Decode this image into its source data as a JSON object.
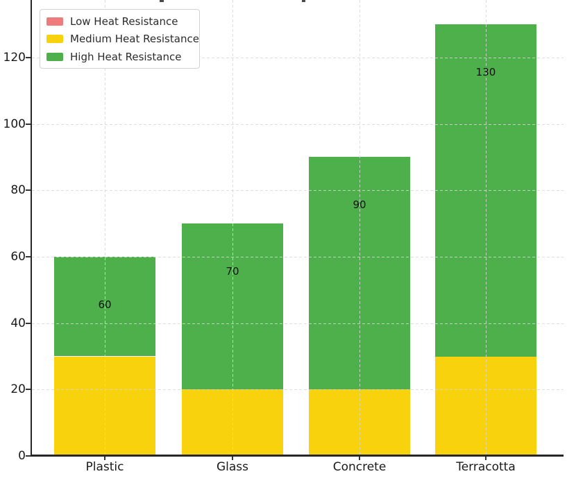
{
  "chart_data": {
    "type": "bar",
    "stacked": true,
    "categories": [
      "Plastic",
      "Glass",
      "Concrete",
      "Terracotta"
    ],
    "series": [
      {
        "name": "Low Heat Resistance",
        "color": "#ee7c7c",
        "values": [
          0,
          0,
          0,
          0
        ]
      },
      {
        "name": "Medium Heat Resistance",
        "color": "#f8d30d",
        "values": [
          30,
          20,
          20,
          30
        ]
      },
      {
        "name": "High Heat Resistance",
        "color": "#4db04b",
        "values": [
          30,
          50,
          70,
          100
        ]
      }
    ],
    "totals": [
      60,
      70,
      90,
      130
    ],
    "total_labels": [
      "60",
      "70",
      "90",
      "130"
    ],
    "yticks": [
      0,
      20,
      40,
      60,
      80,
      100,
      120
    ],
    "ytick_labels": [
      "0",
      "20",
      "40",
      "60",
      "80",
      "100",
      "120"
    ],
    "ylim": [
      0,
      137
    ],
    "grid": "dashed",
    "grid_color": "#d7d7d7",
    "axis_color": "#262626",
    "legend_position": "upper-left",
    "title_cropped": true
  },
  "clipped_title_fragments": [
    {
      "x": 230,
      "width": 6
    },
    {
      "x": 435,
      "width": 5
    }
  ]
}
